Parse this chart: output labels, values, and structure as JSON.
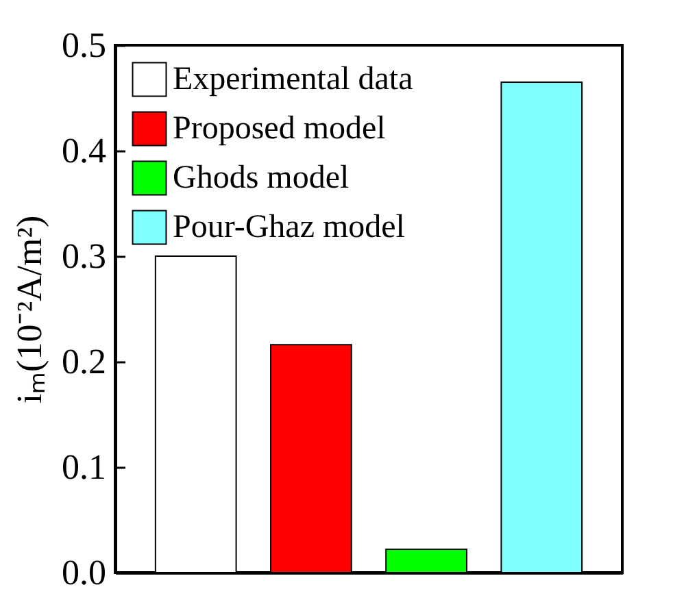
{
  "chart_data": {
    "type": "bar",
    "ylabel": "iₘ(10⁻²A/m²)",
    "categories": [
      null,
      null,
      null,
      null
    ],
    "series": [
      {
        "name": "Experimental data",
        "color": "#ffffff",
        "values": [
          0.3,
          null,
          null,
          null
        ]
      },
      {
        "name": "Proposed model",
        "color": "#ff0000",
        "values": [
          null,
          0.216,
          null,
          null
        ]
      },
      {
        "name": "Ghods model",
        "color": "#00ff00",
        "values": [
          null,
          null,
          0.022,
          null
        ]
      },
      {
        "name": "Pour-Ghaz model",
        "color": "#80ffff",
        "values": [
          null,
          null,
          null,
          0.465
        ]
      }
    ],
    "ylim": [
      0,
      0.5
    ],
    "yticks": [
      {
        "value": 0,
        "label": "0.0"
      },
      0.1,
      0.2,
      0.3,
      0.4,
      0.5
    ],
    "tick_labels": "y",
    "legend": "top left",
    "grid": false
  }
}
